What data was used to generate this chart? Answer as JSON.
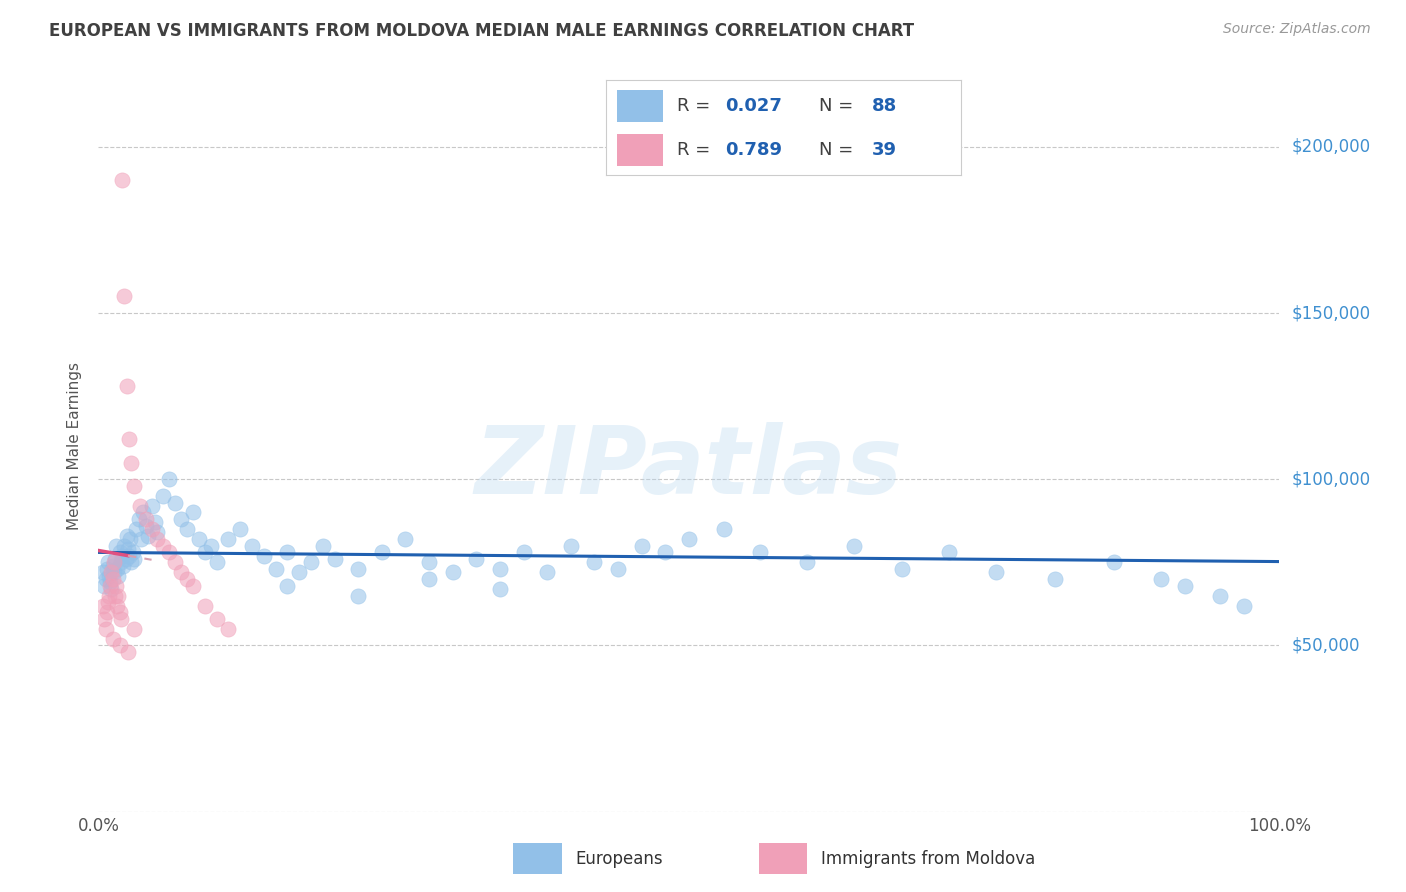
{
  "title": "EUROPEAN VS IMMIGRANTS FROM MOLDOVA MEDIAN MALE EARNINGS CORRELATION CHART",
  "source_text": "Source: ZipAtlas.com",
  "ylabel": "Median Male Earnings",
  "xlim": [
    0.0,
    1.0
  ],
  "ylim": [
    0,
    220000
  ],
  "yticks": [
    0,
    50000,
    100000,
    150000,
    200000
  ],
  "ytick_labels": [
    "",
    "$50,000",
    "$100,000",
    "$150,000",
    "$200,000"
  ],
  "watermark": "ZIPatlas",
  "blue_scatter_color": "#92c0e8",
  "pink_scatter_color": "#f0a0b8",
  "blue_line_color": "#2060b0",
  "pink_line_color": "#e05080",
  "pink_dashed_color": "#d8a0b0",
  "grid_color": "#c8c8c8",
  "title_color": "#404040",
  "ytick_color": "#4090d0",
  "legend_r_color": "#2060b0",
  "legend_n_color": "#2060b0",
  "legend_label_color": "#404040",
  "europeans_x": [
    0.004,
    0.005,
    0.006,
    0.007,
    0.008,
    0.009,
    0.01,
    0.011,
    0.012,
    0.013,
    0.014,
    0.015,
    0.016,
    0.017,
    0.018,
    0.019,
    0.02,
    0.021,
    0.022,
    0.023,
    0.024,
    0.025,
    0.026,
    0.027,
    0.028,
    0.029,
    0.03,
    0.032,
    0.034,
    0.036,
    0.038,
    0.04,
    0.042,
    0.045,
    0.048,
    0.05,
    0.055,
    0.06,
    0.065,
    0.07,
    0.075,
    0.08,
    0.085,
    0.09,
    0.095,
    0.1,
    0.11,
    0.12,
    0.13,
    0.14,
    0.15,
    0.16,
    0.17,
    0.18,
    0.19,
    0.2,
    0.22,
    0.24,
    0.26,
    0.28,
    0.3,
    0.32,
    0.34,
    0.36,
    0.38,
    0.4,
    0.42,
    0.44,
    0.46,
    0.48,
    0.5,
    0.53,
    0.56,
    0.6,
    0.64,
    0.68,
    0.72,
    0.76,
    0.81,
    0.86,
    0.9,
    0.92,
    0.95,
    0.97,
    0.16,
    0.22,
    0.28,
    0.34
  ],
  "europeans_y": [
    72000,
    68000,
    70000,
    73000,
    75000,
    71000,
    69000,
    67000,
    74000,
    72000,
    76000,
    80000,
    73000,
    71000,
    78000,
    75000,
    77000,
    74000,
    80000,
    76000,
    83000,
    79000,
    77000,
    82000,
    75000,
    78000,
    76000,
    85000,
    88000,
    82000,
    90000,
    86000,
    83000,
    92000,
    87000,
    84000,
    95000,
    100000,
    93000,
    88000,
    85000,
    90000,
    82000,
    78000,
    80000,
    75000,
    82000,
    85000,
    80000,
    77000,
    73000,
    78000,
    72000,
    75000,
    80000,
    76000,
    73000,
    78000,
    82000,
    75000,
    72000,
    76000,
    73000,
    78000,
    72000,
    80000,
    75000,
    73000,
    80000,
    78000,
    82000,
    85000,
    78000,
    75000,
    80000,
    73000,
    78000,
    72000,
    70000,
    75000,
    70000,
    68000,
    65000,
    62000,
    68000,
    65000,
    70000,
    67000
  ],
  "moldova_x": [
    0.004,
    0.005,
    0.006,
    0.007,
    0.008,
    0.009,
    0.01,
    0.011,
    0.012,
    0.013,
    0.014,
    0.015,
    0.016,
    0.017,
    0.018,
    0.019,
    0.02,
    0.022,
    0.024,
    0.026,
    0.028,
    0.03,
    0.035,
    0.04,
    0.045,
    0.05,
    0.055,
    0.06,
    0.065,
    0.07,
    0.075,
    0.08,
    0.09,
    0.1,
    0.11,
    0.03,
    0.012,
    0.018,
    0.025
  ],
  "moldova_y": [
    62000,
    58000,
    55000,
    60000,
    63000,
    65000,
    68000,
    72000,
    70000,
    75000,
    65000,
    68000,
    62000,
    65000,
    60000,
    58000,
    190000,
    155000,
    128000,
    112000,
    105000,
    98000,
    92000,
    88000,
    85000,
    82000,
    80000,
    78000,
    75000,
    72000,
    70000,
    68000,
    62000,
    58000,
    55000,
    55000,
    52000,
    50000,
    48000
  ]
}
